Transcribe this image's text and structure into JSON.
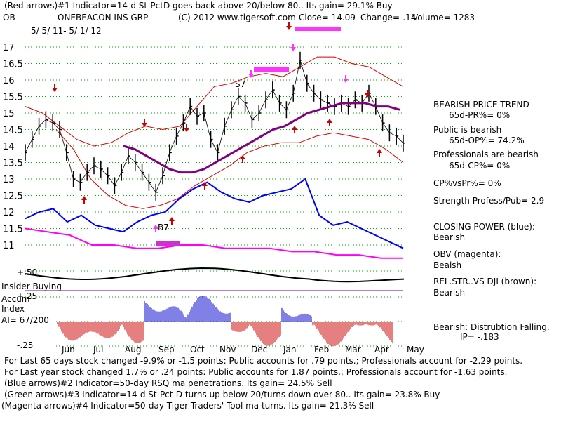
{
  "header": {
    "line1": "(Red arrows)#1 Indicator=14-d St-PctD goes back above 20/below 80.. Its gain= 29.1% Buy",
    "symbol": "OB",
    "company": "ONEBEACON INS GRP",
    "copyright": "(C) 2012 www.tigersoft.com",
    "close": "Close= 14.09",
    "change": "Change=-.14",
    "volume": "Volume= 1283",
    "date_range": "5/ 5/ 11- 5/ 1/ 12"
  },
  "right_panel": {
    "trend_title": "BEARISH PRICE TREND",
    "pr": "65d-PR%= 0%",
    "public_title": "Public is bearish",
    "op": "65d-OP%= 74.2%",
    "pro_title": "Professionals are bearish",
    "cp": "65d-CP%= 0%",
    "cpvspr": "CP%vsPr%= 0%",
    "strength": "Strength Profess/Pub= 2.9",
    "closing_power": "CLOSING POWER (blue):",
    "closing_power_val": "Bearish",
    "obv": "OBV (magenta):",
    "obv_val": "Beaish",
    "relstr": "REL.STR..VS DJI (brown):",
    "relstr_val": "Bearish",
    "ip_line1": "Bearish: Distrubtion Falling.",
    "ip_line2": "IP= -.183"
  },
  "left_labels": {
    "insider": "Insider Buying",
    "accum": "Accum",
    "index": "Index",
    "ai": "AI= 67/200",
    "plus50": "+.50",
    "plus25": "+.25",
    "minus25": "-.25"
  },
  "footer": {
    "line1": "For Last 65 days stock changed -9.9% or -1.5 points:  Public accounts for .79 points.;  Professionals account for -2.29 points.",
    "line2": "For Last year stock changed  1.7% or  .24 points:  Public accounts for  1.87 points.;  Professionals account for -1.63 points.",
    "line3": "(Blue arrows)#2 Indicator=50-day RSQ ma penetrations. Its gain= 24.5% Sell",
    "line4": "(Green arrows)#3 Indicator=14-d St-Pct-D turns up below 20/turns down over 80.. Its gain= 23.8% Buy",
    "line5": "(Magenta arrows)#4 Indicator=50-day Tiger Traders' Tool ma turns. Its gain= 21.3% Sell"
  },
  "colors": {
    "price": "#000000",
    "band": "#dd0000",
    "ma": "#800080",
    "closing_power": "#0000ff",
    "obv": "#ff00ff",
    "grid": "#00aa00",
    "accum_pos": "#0000cc",
    "accum_neg": "#cc0000"
  },
  "chart_data": {
    "type": "line",
    "title": "ONEBEACON INS GRP",
    "date_range": "5/5/11 - 5/1/12",
    "y_ticks": [
      "17",
      "16.5",
      "16",
      "15.5",
      "15",
      "14.5",
      "14",
      "13.5",
      "13",
      "12.5",
      "12",
      "11.5",
      "11"
    ],
    "y_values": [
      17,
      16.5,
      16,
      15.5,
      15,
      14.5,
      14,
      13.5,
      13,
      12.5,
      12,
      11.5,
      11
    ],
    "x_ticks": [
      "Jun",
      "Jul",
      "Aug",
      "Sep",
      "Oct",
      "Nov",
      "Dec",
      "Jan",
      "Feb",
      "Mar",
      "Apr",
      "May"
    ],
    "price_close": [
      13.8,
      14.2,
      14.6,
      14.8,
      14.7,
      14.5,
      13.8,
      13.0,
      12.9,
      13.2,
      13.4,
      13.3,
      13.1,
      12.8,
      13.2,
      13.7,
      13.5,
      13.2,
      12.9,
      12.6,
      13.1,
      13.8,
      14.3,
      14.7,
      15.2,
      14.9,
      15.0,
      14.2,
      13.8,
      14.6,
      15.1,
      15.5,
      15.3,
      14.8,
      15.0,
      15.4,
      15.7,
      15.3,
      15.1,
      15.6,
      16.6,
      15.9,
      15.6,
      15.4,
      15.3,
      15.2,
      15.3,
      15.2,
      15.4,
      15.3,
      15.6,
      15.2,
      14.7,
      14.4,
      14.3,
      14.09
    ],
    "ma50": [
      14.0,
      13.9,
      13.7,
      13.5,
      13.3,
      13.2,
      13.2,
      13.3,
      13.5,
      13.7,
      13.9,
      14.1,
      14.3,
      14.5,
      14.6,
      14.8,
      15.0,
      15.1,
      15.2,
      15.3,
      15.3,
      15.3,
      15.2,
      15.2,
      15.1
    ],
    "band_upper": [
      15.2,
      15.0,
      14.6,
      14.2,
      14.0,
      14.1,
      14.4,
      14.6,
      14.5,
      14.6,
      15.2,
      15.8,
      15.9,
      16.1,
      16.2,
      16.1,
      16.4,
      16.7,
      16.7,
      16.5,
      16.4,
      16.1,
      15.8
    ],
    "band_lower": [
      14.5,
      13.9,
      13.0,
      12.5,
      12.2,
      12.1,
      12.2,
      12.4,
      12.8,
      13.1,
      13.4,
      13.8,
      14.0,
      14.1,
      14.1,
      14.3,
      14.4,
      14.3,
      14.2,
      13.9,
      13.5
    ],
    "closing_power": [
      11.8,
      12.0,
      12.1,
      11.7,
      11.9,
      11.6,
      11.5,
      11.4,
      11.7,
      11.9,
      12.0,
      12.4,
      12.7,
      12.9,
      12.6,
      12.4,
      12.3,
      12.5,
      12.6,
      12.7,
      13.0,
      11.9,
      11.6,
      11.7,
      11.5,
      11.3,
      11.1,
      10.9
    ],
    "obv": [
      11.5,
      11.4,
      11.3,
      11.0,
      11.0,
      10.9,
      10.9,
      11.0,
      11.0,
      10.9,
      10.9,
      10.9,
      10.8,
      10.8,
      10.7,
      10.7,
      10.6,
      10.6
    ],
    "rel_str_label": "REL.STR. VS DJI",
    "ai_label": "AI= 67/200",
    "ip": "-.183",
    "annotations": [
      "B7",
      "S7"
    ]
  }
}
